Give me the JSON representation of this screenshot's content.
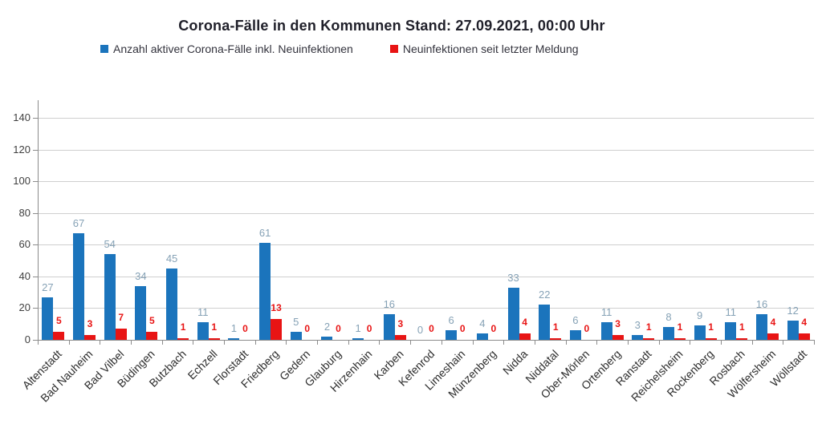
{
  "title": "Corona-Fälle in den Kommunen Stand: 27.09.2021, 00:00 Uhr",
  "legend": [
    {
      "label": "Anzahl aktiver Corona-Fälle inkl. Neuinfektionen",
      "color": "#1b74bc"
    },
    {
      "label": "Neuinfektionen seit letzter Meldung",
      "color": "#e81414"
    }
  ],
  "colors": {
    "active_bar": "#1b74bc",
    "new_bar": "#e81414",
    "active_value_label": "#86a2b6",
    "new_value_label": "#e81414",
    "gridline": "#cfcfcf",
    "axis": "#8c8c8c"
  },
  "chart_data": {
    "type": "bar",
    "title": "Corona-Fälle in den Kommunen Stand: 27.09.2021, 00:00 Uhr",
    "xlabel": "",
    "ylabel": "",
    "ylim": [
      0,
      150
    ],
    "yticks": [
      0,
      20,
      40,
      60,
      80,
      100,
      120,
      140
    ],
    "grid": true,
    "legend_position": "top",
    "categories": [
      "Altenstadt",
      "Bad Nauheim",
      "Bad Vilbel",
      "Büdingen",
      "Butzbach",
      "Echzell",
      "Florstadt",
      "Friedberg",
      "Gedern",
      "Glauburg",
      "Hirzenhain",
      "Karben",
      "Kefenrod",
      "Limeshain",
      "Münzenberg",
      "Nidda",
      "Niddatal",
      "Ober-Mörlen",
      "Ortenberg",
      "Ranstadt",
      "Reichelsheim",
      "Rockenberg",
      "Rosbach",
      "Wölfersheim",
      "Wöllstadt"
    ],
    "series": [
      {
        "name": "Anzahl aktiver Corona-Fälle inkl. Neuinfektionen",
        "color": "#1b74bc",
        "values": [
          27,
          67,
          54,
          34,
          45,
          11,
          1,
          61,
          5,
          2,
          1,
          16,
          0,
          6,
          4,
          33,
          22,
          6,
          11,
          3,
          8,
          9,
          11,
          16,
          12
        ]
      },
      {
        "name": "Neuinfektionen seit letzter Meldung",
        "color": "#e81414",
        "values": [
          5,
          3,
          7,
          5,
          1,
          1,
          0,
          13,
          0,
          0,
          0,
          3,
          0,
          0,
          0,
          4,
          1,
          0,
          3,
          1,
          1,
          1,
          1,
          4,
          4
        ]
      }
    ]
  }
}
